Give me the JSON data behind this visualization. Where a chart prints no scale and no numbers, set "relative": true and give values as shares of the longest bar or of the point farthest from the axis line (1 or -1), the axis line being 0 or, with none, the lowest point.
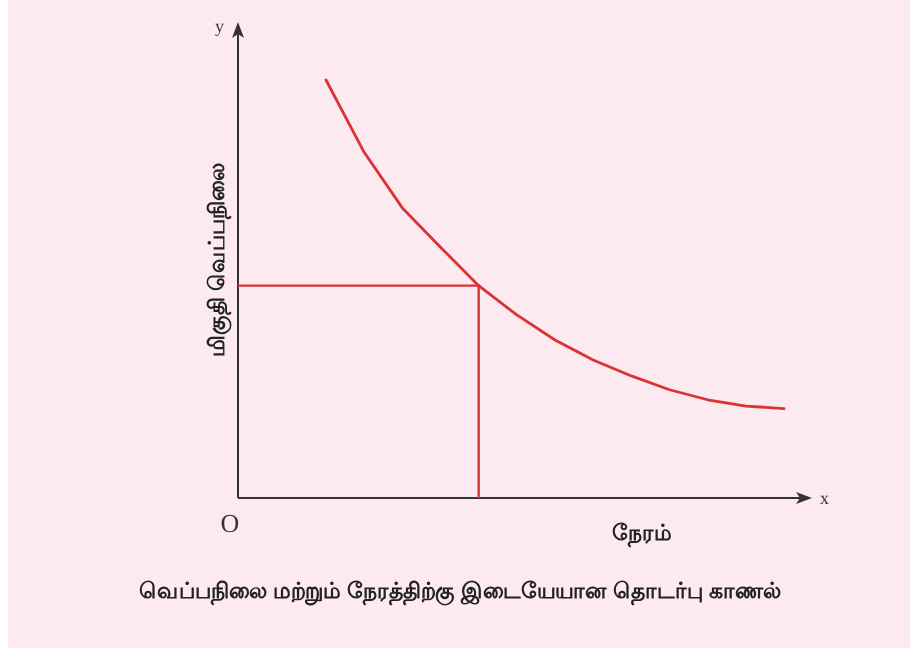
{
  "chart_data": {
    "type": "line",
    "relative": true,
    "title": "வெப்பநிலை மற்றும் நேரத்திற்கு இடையேயான தொடர்பு காணல்",
    "xlabel": "நேரம்",
    "ylabel": "மிகுதி வெப்பநிலை",
    "annotations": [
      "y",
      "x",
      "O"
    ],
    "categories": [
      null,
      null,
      null,
      null,
      null,
      null,
      null,
      null,
      null,
      null,
      null,
      null,
      null
    ],
    "series": [
      {
        "color": "#d93333",
        "values": [
          1,
          0.827,
          0.694,
          0.6,
          0.508,
          0.438,
          0.378,
          0.33,
          0.292,
          0.259,
          0.235,
          0.22,
          0.214
        ]
      }
    ],
    "ref_lines": [
      {
        "axis": "y",
        "value": 0.508,
        "color": "#d93333"
      }
    ]
  }
}
